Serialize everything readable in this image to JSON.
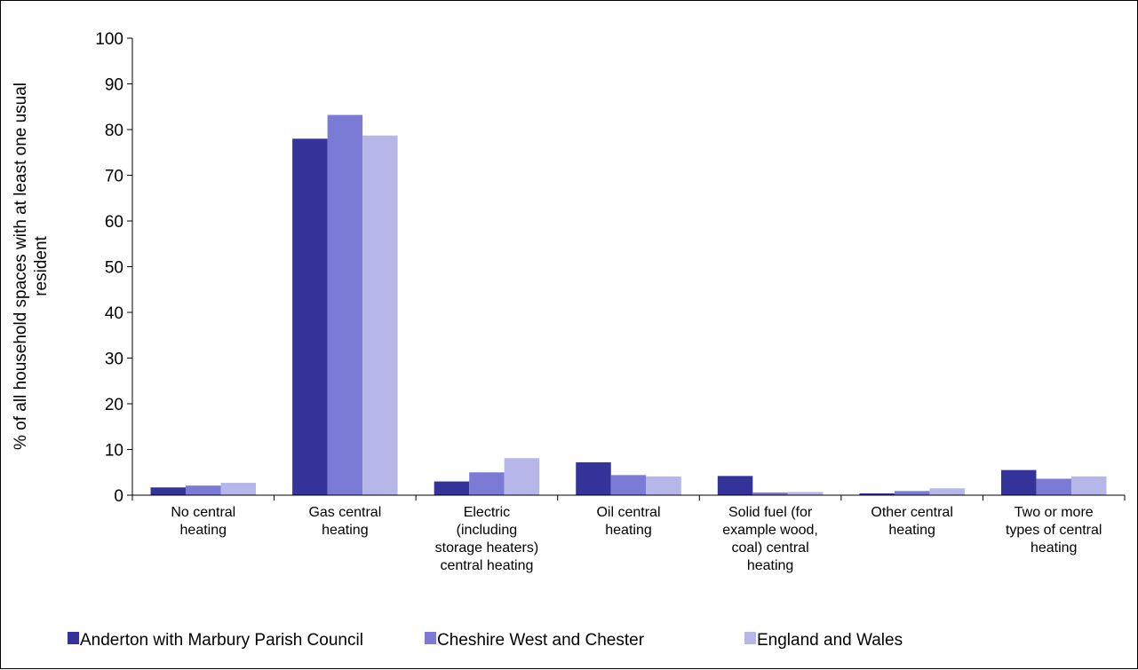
{
  "chart_data": {
    "type": "bar",
    "title": "",
    "xlabel": "",
    "ylabel": [
      "% of all household spaces with at least one usual",
      "resident"
    ],
    "ylim": [
      0,
      100
    ],
    "yticks": [
      0,
      10,
      20,
      30,
      40,
      50,
      60,
      70,
      80,
      90,
      100
    ],
    "grid": false,
    "legend_position": "bottom",
    "categories": [
      [
        "No central",
        "heating"
      ],
      [
        "Gas central",
        "heating"
      ],
      [
        "Electric",
        "(including",
        "storage heaters)",
        "central heating"
      ],
      [
        "Oil central",
        "heating"
      ],
      [
        "Solid fuel (for",
        "example wood,",
        "coal) central",
        "heating"
      ],
      [
        "Other central",
        "heating"
      ],
      [
        "Two or more",
        "types of central",
        "heating"
      ]
    ],
    "series": [
      {
        "name": "Anderton with Marbury Parish Council",
        "color": "#333399",
        "values": [
          1.7,
          78.0,
          3.0,
          7.2,
          4.2,
          0.4,
          5.5
        ]
      },
      {
        "name": "Cheshire West and Chester",
        "color": "#7b7bd6",
        "values": [
          2.1,
          83.2,
          5.0,
          4.4,
          0.6,
          0.9,
          3.6
        ]
      },
      {
        "name": "England and Wales",
        "color": "#b6b6e8",
        "values": [
          2.7,
          78.7,
          8.1,
          4.1,
          0.7,
          1.5,
          4.1
        ]
      }
    ]
  }
}
